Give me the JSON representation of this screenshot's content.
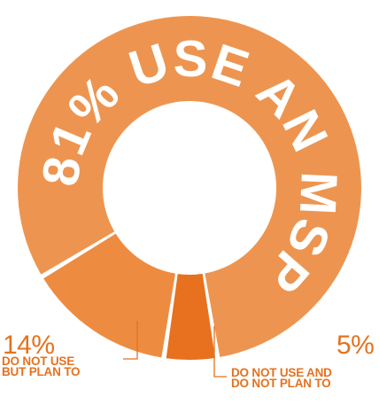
{
  "chart_data": {
    "type": "pie",
    "title": "",
    "slices": [
      {
        "name": "81% USE AN MSP",
        "value": 81,
        "color": "#ed9550"
      },
      {
        "name": "DO NOT USE BUT PLAN TO",
        "value": 14,
        "color": "#ed8c41"
      },
      {
        "name": "DO NOT USE AND DO NOT PLAN TO",
        "value": 5,
        "color": "#e7711f"
      }
    ],
    "annotations": [
      {
        "percent": "14%",
        "label_line1": "DO NOT USE",
        "label_line2": "BUT PLAN TO"
      },
      {
        "percent": "5%",
        "label_line1": "DO NOT USE AND",
        "label_line2": "DO NOT PLAN TO"
      }
    ],
    "arc_text": "81% USE AN MSP",
    "label_color": "#e4721f",
    "leader_color": "#e4721f",
    "background": "#ffffff"
  }
}
